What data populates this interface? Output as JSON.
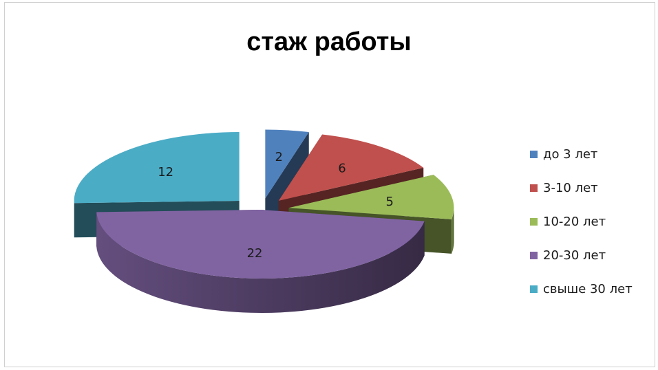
{
  "chart_data": {
    "type": "pie",
    "title": "стаж работы",
    "categories": [
      "до 3 лет",
      "3-10 лет",
      "10-20 лет",
      "20-30 лет",
      "свыше 30 лет"
    ],
    "values": [
      2,
      6,
      5,
      22,
      12
    ],
    "data_labels": [
      "2",
      "6",
      "5",
      "22",
      "12"
    ],
    "colors": [
      "#4f81bd",
      "#c0504d",
      "#9bbb59",
      "#8064a2",
      "#4bacc6"
    ],
    "style": "3d-exploded",
    "legend_position": "right"
  }
}
